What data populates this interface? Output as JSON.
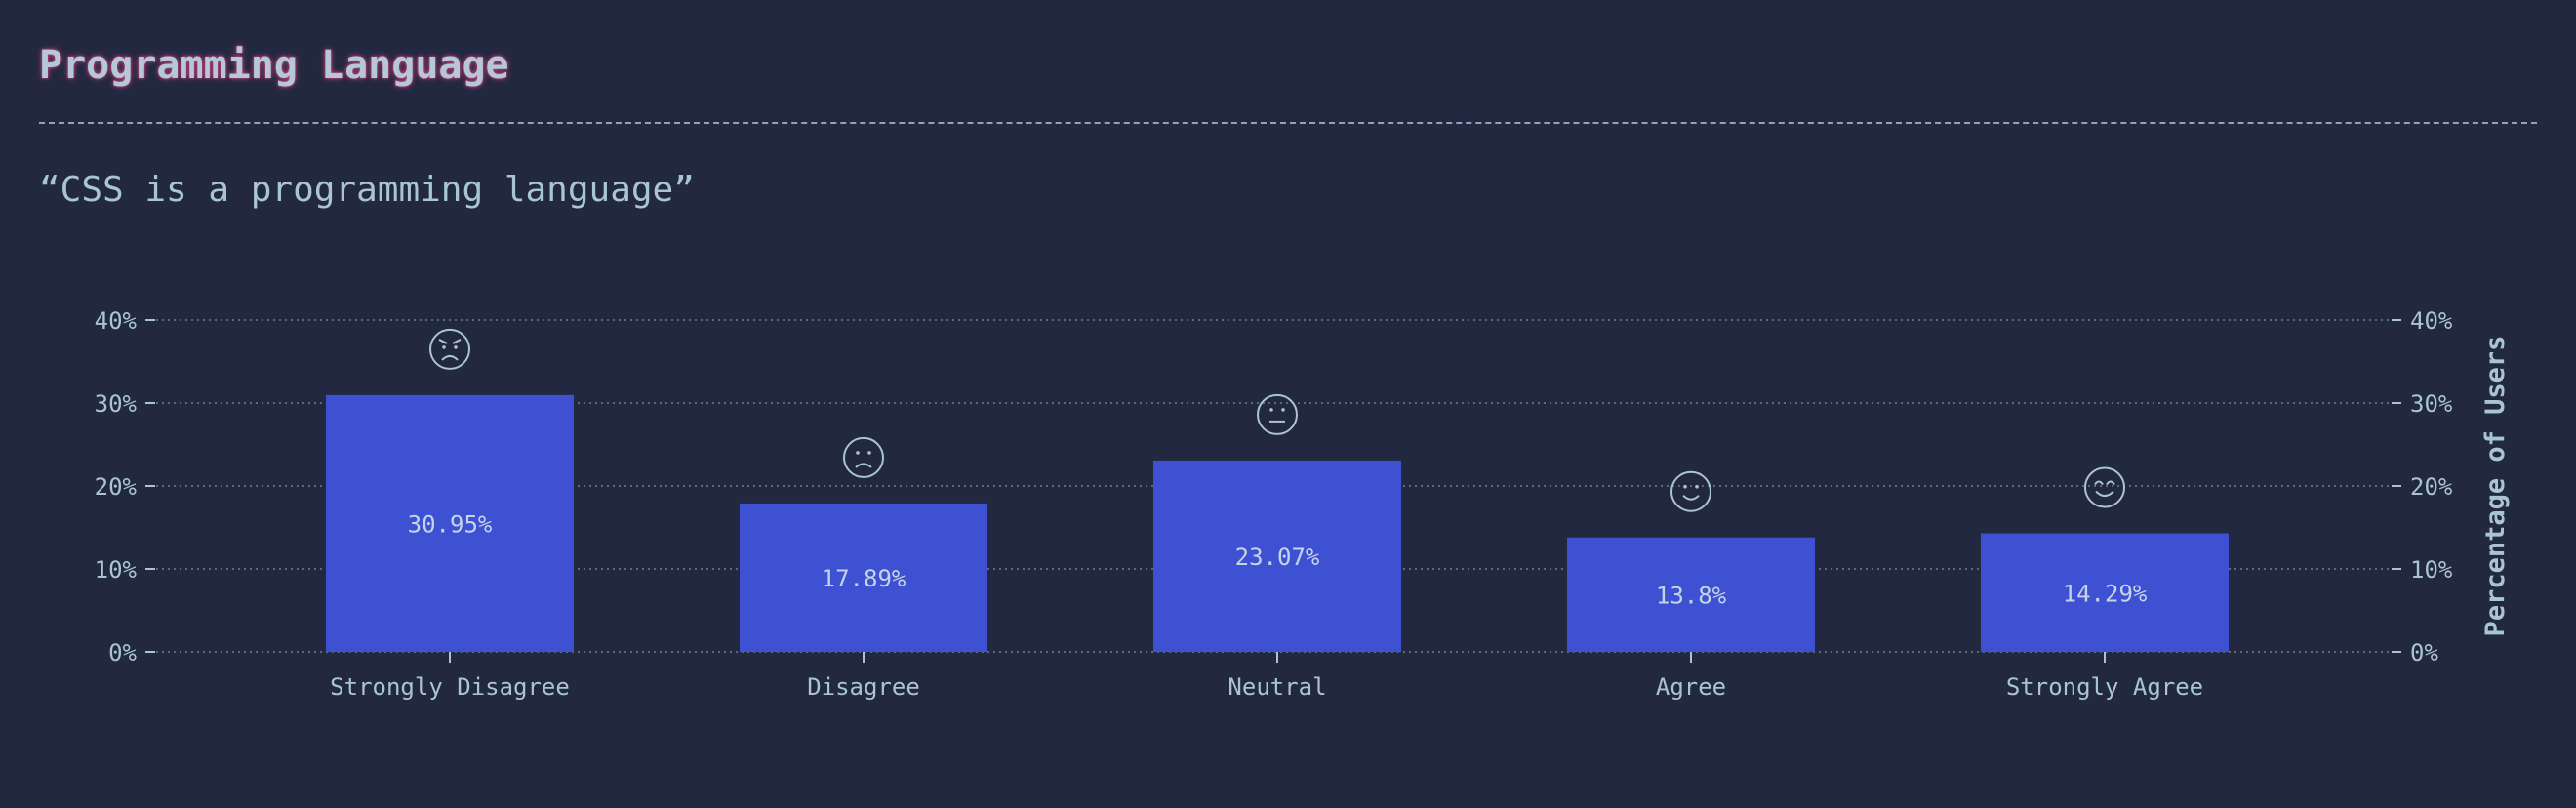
{
  "header": {
    "title": "Programming Language",
    "subtitle": "“CSS is a programming language”"
  },
  "colors": {
    "background": "#222840",
    "bar": "#3e51d3",
    "text": "#a9c4d3",
    "title_glow": "#c2417a",
    "grid": "#6c7f90"
  },
  "chart_data": {
    "type": "bar",
    "categories": [
      "Strongly Disagree",
      "Disagree",
      "Neutral",
      "Agree",
      "Strongly Agree"
    ],
    "values": [
      30.95,
      17.89,
      23.07,
      13.8,
      14.29
    ],
    "value_labels": [
      "30.95%",
      "17.89%",
      "23.07%",
      "13.8%",
      "14.29%"
    ],
    "icons": [
      "angry-face-icon",
      "frowning-face-icon",
      "neutral-face-icon",
      "slightly-smiling-face-icon",
      "smiling-face-icon"
    ],
    "ylabel_right": "Percentage of Users",
    "ylim": [
      0,
      40
    ],
    "y_ticks": [
      "0%",
      "10%",
      "20%",
      "30%",
      "40%"
    ],
    "grid": true
  }
}
